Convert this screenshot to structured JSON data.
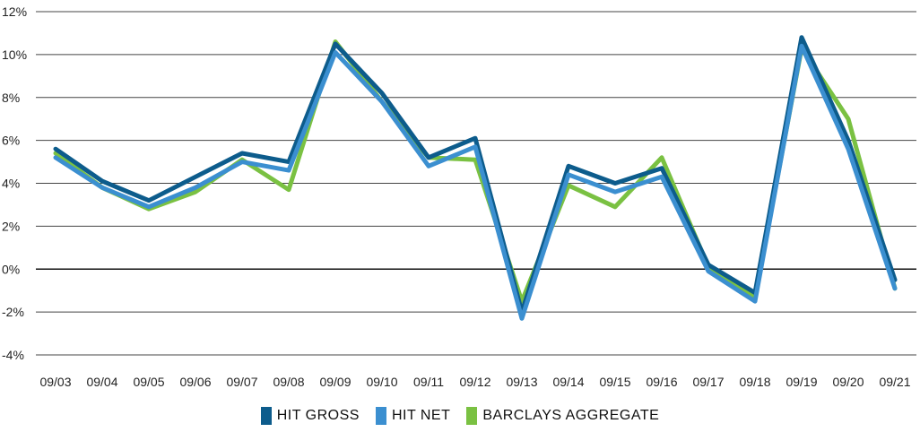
{
  "chart_data": {
    "type": "line",
    "categories": [
      "09/03",
      "09/04",
      "09/05",
      "09/06",
      "09/07",
      "09/08",
      "09/09",
      "09/10",
      "09/11",
      "09/12",
      "09/13",
      "09/14",
      "09/15",
      "09/16",
      "09/17",
      "09/18",
      "09/19",
      "09/20",
      "09/21"
    ],
    "series": [
      {
        "name": "HIT GROSS",
        "color": "#0d5c8c",
        "values": [
          5.6,
          4.1,
          3.2,
          4.3,
          5.4,
          5.0,
          10.5,
          8.2,
          5.2,
          6.1,
          -2.0,
          4.8,
          4.0,
          4.7,
          0.2,
          -1.1,
          10.8,
          6.0,
          -0.5
        ]
      },
      {
        "name": "HIT NET",
        "color": "#3b8fd0",
        "values": [
          5.2,
          3.8,
          2.9,
          3.8,
          5.0,
          4.6,
          10.1,
          7.8,
          4.8,
          5.7,
          -2.3,
          4.4,
          3.6,
          4.3,
          -0.1,
          -1.5,
          10.4,
          5.6,
          -0.9
        ]
      },
      {
        "name": "BARCLAYS AGGREGATE",
        "color": "#7ac142",
        "values": [
          5.4,
          3.8,
          2.8,
          3.6,
          5.1,
          3.7,
          10.6,
          7.8,
          5.2,
          5.1,
          -1.5,
          3.9,
          2.9,
          5.2,
          0.1,
          -1.3,
          10.3,
          7.0,
          -0.9
        ]
      }
    ],
    "y_ticks": [
      "12%",
      "10%",
      "8%",
      "6%",
      "4%",
      "2%",
      "0%",
      "-2%",
      "-4%"
    ],
    "y_tick_values": [
      12,
      10,
      8,
      6,
      4,
      2,
      0,
      -2,
      -4
    ],
    "ylim": [
      -4,
      12
    ],
    "grid": true,
    "legend_position": "bottom-center"
  }
}
